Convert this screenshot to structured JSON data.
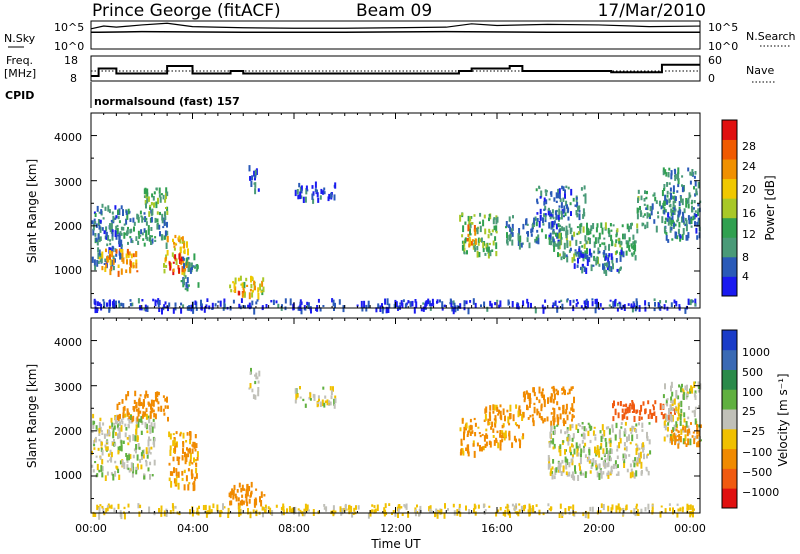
{
  "header": {
    "station": "Prince George (fitACF)",
    "beam": "Beam 09",
    "date": "17/Mar/2010"
  },
  "summary_panels": {
    "nsky_label": "N.Sky",
    "nsky_ticks": [
      "10^5",
      "10^0"
    ],
    "nsearch_label": "N.Search",
    "nsearch_ticks": [
      "10^5",
      "10^0"
    ],
    "freq_label": "Freq.",
    "freq_unit": "[MHz]",
    "freq_ticks": [
      "18",
      "8"
    ],
    "nave_label": "Nave",
    "nave_ticks": [
      "60",
      "0"
    ],
    "cpid_label": "CPID",
    "cpid_text": "normalsound (fast) 157"
  },
  "axes": {
    "xlabel": "Time UT",
    "x_ticks": [
      "00:00",
      "04:00",
      "08:00",
      "12:00",
      "16:00",
      "20:00",
      "00:00"
    ],
    "ylabel": "Slant Range [km]",
    "y_ticks": [
      "1000",
      "2000",
      "3000",
      "4000"
    ]
  },
  "colorbars": {
    "power": {
      "label": "Power [dB]",
      "ticks": [
        "4",
        "8",
        "12",
        "16",
        "20",
        "24",
        "28"
      ],
      "colors": [
        "#1a1af0",
        "#2a5ab8",
        "#4a9a78",
        "#30a050",
        "#a8c828",
        "#f0c800",
        "#f09000",
        "#f05a00",
        "#e01010"
      ]
    },
    "velocity": {
      "label": "Velocity [m s⁻¹]",
      "ticks": [
        "1000",
        "500",
        "100",
        "25",
        "−25",
        "−100",
        "−500",
        "−1000"
      ],
      "colors": [
        "#1a3cc8",
        "#3a6ab4",
        "#2a8a4a",
        "#60b040",
        "#c0c0b8",
        "#f0c000",
        "#f08a00",
        "#f05a10",
        "#e01010"
      ]
    }
  },
  "chart_data": [
    {
      "type": "line",
      "x_unit": "hours UT",
      "y_unit": "log10 count",
      "series": [
        {
          "x": [
            0.0,
            0.5,
            1.0,
            2.0,
            3.0,
            4.0,
            6.0,
            8.0,
            10.0,
            12.0,
            14.0,
            15.0,
            16.0,
            18.0,
            20.0,
            22.0,
            24.0
          ],
          "y": [
            3.6,
            4.1,
            3.9,
            4.3,
            4.6,
            4.0,
            3.8,
            3.7,
            3.7,
            3.8,
            3.9,
            4.5,
            4.2,
            4.4,
            4.3,
            4.0,
            4.1
          ]
        },
        {
          "x": [
            0.0,
            0.3,
            2.0,
            6.0,
            10.0,
            14.0,
            18.0,
            22.0,
            24.0
          ],
          "y": [
            3.0,
            3.0,
            3.1,
            3.0,
            3.0,
            3.1,
            3.0,
            3.0,
            3.0
          ]
        }
      ]
    },
    {
      "type": "line",
      "x_unit": "hours UT",
      "series": [
        {
          "x": [
            0.0,
            0.3,
            0.3,
            1.0,
            1.0,
            3.0,
            3.0,
            4.0,
            4.0,
            5.5,
            5.5,
            6.0,
            6.0,
            14.5,
            14.5,
            15.0,
            15.0,
            16.5,
            16.5,
            17.0,
            17.0,
            20.5,
            20.5,
            22.5,
            22.5,
            24.0
          ],
          "y": [
            10.0,
            10.0,
            13.0,
            13.0,
            11.0,
            11.0,
            14.0,
            14.0,
            11.0,
            11.0,
            12.0,
            12.0,
            11.0,
            11.0,
            12.0,
            12.0,
            13.0,
            13.0,
            14.0,
            14.0,
            12.0,
            12.0,
            11.5,
            11.5,
            14.5,
            14.5
          ]
        },
        {
          "x": [
            0.0,
            24.0
          ],
          "y": [
            12.0,
            12.0
          ]
        }
      ]
    },
    {
      "type": "heatmap",
      "quantity": "Power",
      "unit": "dB",
      "x_unit": "hours UT",
      "xlim": [
        0,
        24
      ],
      "ylim": [
        180,
        4500
      ],
      "regions": [
        {
          "t": [
            0.0,
            1.2
          ],
          "r": [
            1100,
            2500
          ],
          "value": 8
        },
        {
          "t": [
            0.3,
            1.8
          ],
          "r": [
            1000,
            1500
          ],
          "value": 22
        },
        {
          "t": [
            1.0,
            3.0
          ],
          "r": [
            1600,
            2400
          ],
          "value": 10
        },
        {
          "t": [
            2.0,
            3.0
          ],
          "r": [
            2300,
            2900
          ],
          "value": 14
        },
        {
          "t": [
            2.8,
            3.8
          ],
          "r": [
            1000,
            1800
          ],
          "value": 20
        },
        {
          "t": [
            3.0,
            3.6
          ],
          "r": [
            1000,
            1400
          ],
          "value": 27
        },
        {
          "t": [
            3.5,
            4.2
          ],
          "r": [
            600,
            1400
          ],
          "value": 10
        },
        {
          "t": [
            5.4,
            6.8
          ],
          "r": [
            500,
            900
          ],
          "value": 18
        },
        {
          "t": [
            5.6,
            6.3
          ],
          "r": [
            500,
            700
          ],
          "value": 25
        },
        {
          "t": [
            6.2,
            6.6
          ],
          "r": [
            2800,
            3400
          ],
          "value": 6
        },
        {
          "t": [
            8.0,
            9.6
          ],
          "r": [
            2600,
            3000
          ],
          "value": 6
        },
        {
          "t": [
            14.5,
            16.0
          ],
          "r": [
            1400,
            2300
          ],
          "value": 14
        },
        {
          "t": [
            14.8,
            15.2
          ],
          "r": [
            1600,
            2100
          ],
          "value": 22
        },
        {
          "t": [
            16.3,
            18.5
          ],
          "r": [
            1600,
            2300
          ],
          "value": 8
        },
        {
          "t": [
            17.5,
            19.5
          ],
          "r": [
            2200,
            2900
          ],
          "value": 8
        },
        {
          "t": [
            18.2,
            21.5
          ],
          "r": [
            1300,
            2100
          ],
          "value": 12
        },
        {
          "t": [
            19.0,
            21.0
          ],
          "r": [
            1000,
            1500
          ],
          "value": 7
        },
        {
          "t": [
            21.5,
            23.0
          ],
          "r": [
            2000,
            2800
          ],
          "value": 11
        },
        {
          "t": [
            22.5,
            24.0
          ],
          "r": [
            1700,
            3300
          ],
          "value": 9
        },
        {
          "t": [
            0.0,
            24.0
          ],
          "r": [
            180,
            400
          ],
          "value": 5
        }
      ]
    },
    {
      "type": "heatmap",
      "quantity": "Velocity",
      "unit": "m/s",
      "x_unit": "hours UT",
      "xlim": [
        0,
        24
      ],
      "ylim": [
        180,
        4500
      ],
      "regions": [
        {
          "t": [
            0.0,
            2.5
          ],
          "r": [
            1000,
            2400
          ],
          "value": 0
        },
        {
          "t": [
            1.0,
            3.0
          ],
          "r": [
            2300,
            2900
          ],
          "value": -150
        },
        {
          "t": [
            3.0,
            4.2
          ],
          "r": [
            800,
            2000
          ],
          "value": -120
        },
        {
          "t": [
            5.4,
            6.8
          ],
          "r": [
            400,
            900
          ],
          "value": -180
        },
        {
          "t": [
            6.2,
            6.6
          ],
          "r": [
            2800,
            3400
          ],
          "value": 0
        },
        {
          "t": [
            8.0,
            9.6
          ],
          "r": [
            2600,
            3000
          ],
          "value": 0
        },
        {
          "t": [
            14.5,
            15.5
          ],
          "r": [
            1500,
            2300
          ],
          "value": -130
        },
        {
          "t": [
            15.5,
            17.0
          ],
          "r": [
            1700,
            2600
          ],
          "value": -120
        },
        {
          "t": [
            17.0,
            19.0
          ],
          "r": [
            2200,
            3000
          ],
          "value": -150
        },
        {
          "t": [
            18.0,
            22.0
          ],
          "r": [
            1000,
            2200
          ],
          "value": 0
        },
        {
          "t": [
            20.5,
            23.0
          ],
          "r": [
            2300,
            2700
          ],
          "value": -600
        },
        {
          "t": [
            22.5,
            24.0
          ],
          "r": [
            1800,
            3100
          ],
          "value": 0
        },
        {
          "t": [
            22.8,
            24.0
          ],
          "r": [
            1700,
            2200
          ],
          "value": -150
        },
        {
          "t": [
            0.0,
            24.0
          ],
          "r": [
            180,
            400
          ],
          "value": -50
        }
      ]
    }
  ]
}
